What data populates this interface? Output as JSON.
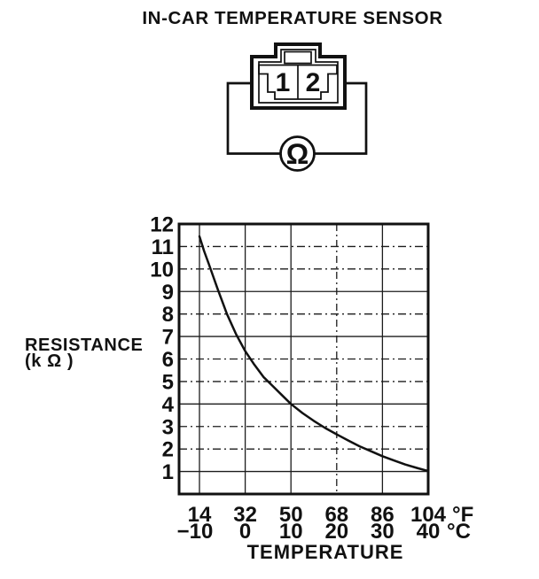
{
  "page_title": "IN-CAR TEMPERATURE SENSOR",
  "connector_diagram": {
    "pin_labels": [
      "1",
      "2"
    ],
    "meter_symbol": "Ω"
  },
  "chart_data": {
    "type": "line",
    "title": "",
    "xlabel": "TEMPERATURE",
    "ylabel": "RESISTANCE",
    "ylabel_unit": "(k Ω )",
    "grid": true,
    "x_axis": {
      "unit_labels": {
        "fahrenheit": "°F",
        "celsius": "°C"
      },
      "ticks": [
        {
          "f": "14",
          "c": "−10",
          "value_c": -10
        },
        {
          "f": "32",
          "c": "0",
          "value_c": 0
        },
        {
          "f": "50",
          "c": "10",
          "value_c": 10
        },
        {
          "f": "68",
          "c": "20",
          "value_c": 20
        },
        {
          "f": "86",
          "c": "30",
          "value_c": 30
        },
        {
          "f": "104",
          "c": "40",
          "value_c": 40
        }
      ],
      "range_c": [
        -14.5,
        40
      ]
    },
    "y_axis": {
      "ticks": [
        {
          "label": "12",
          "value": 12
        },
        {
          "label": "11",
          "value": 11
        },
        {
          "label": "10",
          "value": 10
        },
        {
          "label": "9",
          "value": 9
        },
        {
          "label": "8",
          "value": 8
        },
        {
          "label": "7",
          "value": 7
        },
        {
          "label": "6",
          "value": 6
        },
        {
          "label": "5",
          "value": 5
        },
        {
          "label": "4",
          "value": 4
        },
        {
          "label": "3",
          "value": 3
        },
        {
          "label": "2",
          "value": 2
        },
        {
          "label": "1",
          "value": 1
        }
      ],
      "range": [
        0,
        12
      ]
    },
    "series": [
      {
        "name": "in-car temperature sensor resistance",
        "points_c_kohm": [
          [
            -10,
            11.45
          ],
          [
            -9,
            10.8
          ],
          [
            -8,
            10.25
          ],
          [
            -6,
            9.1
          ],
          [
            -4,
            8.0
          ],
          [
            -2,
            7.1
          ],
          [
            0,
            6.35
          ],
          [
            2,
            5.75
          ],
          [
            4,
            5.2
          ],
          [
            6,
            4.8
          ],
          [
            8,
            4.4
          ],
          [
            10,
            4.0
          ],
          [
            12.5,
            3.6
          ],
          [
            15,
            3.25
          ],
          [
            17.5,
            2.93
          ],
          [
            20,
            2.65
          ],
          [
            22.5,
            2.38
          ],
          [
            25,
            2.12
          ],
          [
            27.5,
            1.9
          ],
          [
            30,
            1.68
          ],
          [
            32.5,
            1.49
          ],
          [
            35,
            1.31
          ],
          [
            37.5,
            1.16
          ],
          [
            40,
            1.02
          ]
        ]
      }
    ]
  }
}
